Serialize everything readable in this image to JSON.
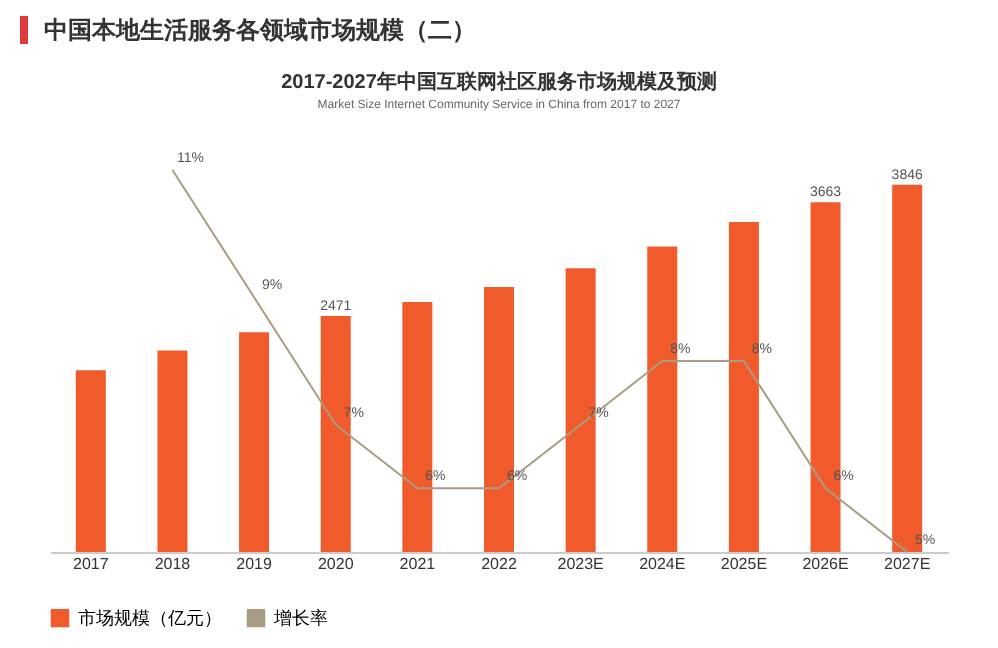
{
  "chart_data": {
    "type": "bar",
    "title": "中国本地生活服务各领域市场规模（二）",
    "subtitle": "2017-2027年中国互联网社区服务市场规模及预测",
    "annotations": [
      "Market  Size  Internet Community Service  in China from 2017 to 2027"
    ],
    "categories": [
      "2017",
      "2018",
      "2019",
      "2020",
      "2021",
      "2022",
      "2023E",
      "2024E",
      "2025E",
      "2026E",
      "2027E"
    ],
    "series": [
      {
        "name": "市场规模（亿元）",
        "color": "#f15a2b",
        "values": [
          1902,
          2111,
          2301,
          2471,
          2619,
          2776,
          2970,
          3200,
          3456,
          3663,
          3846
        ],
        "value_labels": [
          null,
          null,
          null,
          "2471",
          null,
          null,
          null,
          null,
          null,
          "3663",
          "3846"
        ]
      },
      {
        "name": "增长率",
        "type": "line",
        "axis": "y2",
        "color": "#a89c84",
        "values": [
          null,
          11,
          9,
          7,
          6,
          6,
          7,
          8,
          8,
          6,
          5
        ],
        "value_labels": [
          null,
          "11%",
          "9%",
          "7%",
          "6%",
          "6%",
          "7%",
          "8%",
          "8%",
          "6%",
          "5%"
        ]
      }
    ],
    "legend": "bottom",
    "tick_labels": "x"
  }
}
